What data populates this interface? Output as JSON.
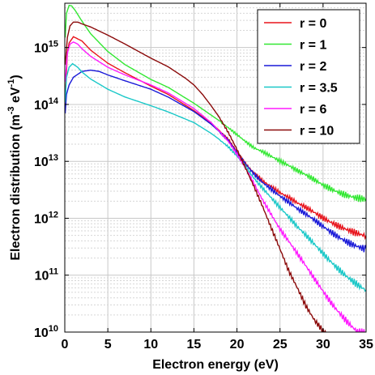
{
  "chart_data": {
    "type": "line",
    "xlabel": "Electron energy (eV)",
    "ylabel_main": "Electron distribution (m",
    "ylabel_exp1": "-3",
    "ylabel_mid": " eV",
    "ylabel_exp2": "-1",
    "ylabel_end": ")",
    "xlim": [
      0,
      35
    ],
    "ylim": [
      10000000000,
      6000000000000000
    ],
    "yscale": "log",
    "grid": true,
    "legend_position": "top-right",
    "x_ticks": [
      "0",
      "5",
      "10",
      "15",
      "20",
      "25",
      "30",
      "35"
    ],
    "y_ticks": [
      {
        "base": "10",
        "exp": "10",
        "value": 10000000000
      },
      {
        "base": "10",
        "exp": "11",
        "value": 100000000000
      },
      {
        "base": "10",
        "exp": "12",
        "value": 1000000000000
      },
      {
        "base": "10",
        "exp": "13",
        "value": 10000000000000
      },
      {
        "base": "10",
        "exp": "14",
        "value": 100000000000000
      },
      {
        "base": "10",
        "exp": "15",
        "value": 1000000000000000
      }
    ],
    "series": [
      {
        "name": "r = 0",
        "color": "#e8141c",
        "x": [
          0.05,
          0.3,
          0.5,
          1.0,
          2,
          3,
          5,
          7,
          10,
          12,
          15,
          17,
          19,
          20,
          21,
          22,
          23,
          25,
          27,
          30,
          33,
          35
        ],
        "y": [
          130000000000000.0,
          800000000000000.0,
          1200000000000000.0,
          1550000000000000.0,
          1300000000000000.0,
          900000000000000.0,
          530000000000000.0,
          360000000000000.0,
          210000000000000.0,
          150000000000000.0,
          78000000000000.0,
          47000000000000.0,
          25000000000000.0,
          15500000000000.0,
          9500000000000.0,
          6500000000000.0,
          4600000000000.0,
          2650000000000.0,
          1700000000000.0,
          1050000000000.0,
          700000000000.0,
          500000000000.0
        ]
      },
      {
        "name": "r = 1",
        "color": "#33e833",
        "x": [
          0.05,
          0.2,
          0.5,
          0.8,
          1.2,
          2,
          3,
          5,
          7,
          10,
          12,
          15,
          17,
          19,
          20,
          21,
          22,
          23,
          25,
          27,
          30,
          33,
          35
        ],
        "y": [
          1500000000000000.0,
          4000000000000000.0,
          5500000000000000.0,
          5400000000000000.0,
          4500000000000000.0,
          2900000000000000.0,
          1750000000000000.0,
          850000000000000.0,
          500000000000000.0,
          275000000000000.0,
          200000000000000.0,
          105000000000000.0,
          65000000000000.0,
          40000000000000.0,
          31000000000000.0,
          23500000000000.0,
          18000000000000.0,
          15000000000000.0,
          9500000000000.0,
          6300000000000.0,
          4000000000000.0,
          2800000000000.0,
          2200000000000.0
        ]
      },
      {
        "name": "r = 2",
        "color": "#1a1ad8",
        "x": [
          0.05,
          0.2,
          0.5,
          1,
          2,
          3,
          4,
          5,
          7,
          10,
          12,
          15,
          17,
          19,
          20,
          21,
          22,
          23,
          25,
          27,
          30,
          33,
          35
        ],
        "y": [
          70000000000000.0,
          150000000000000.0,
          220000000000000.0,
          300000000000000.0,
          380000000000000.0,
          400000000000000.0,
          380000000000000.0,
          330000000000000.0,
          260000000000000.0,
          185000000000000.0,
          135000000000000.0,
          75000000000000.0,
          45000000000000.0,
          24000000000000.0,
          15000000000000.0,
          9500000000000.0,
          6200000000000.0,
          4300000000000.0,
          2300000000000.0,
          1350000000000.0,
          750000000000.0,
          420000000000.0,
          290000000000.0
        ]
      },
      {
        "name": "r = 3.5",
        "color": "#1ac8c8",
        "x": [
          0.05,
          0.2,
          0.5,
          0.9,
          1.5,
          2,
          3,
          5,
          7,
          10,
          12,
          15,
          17,
          19,
          20,
          21,
          22,
          23,
          25,
          27,
          30,
          33,
          35
        ],
        "y": [
          110000000000000.0,
          300000000000000.0,
          450000000000000.0,
          520000000000000.0,
          450000000000000.0,
          370000000000000.0,
          280000000000000.0,
          185000000000000.0,
          135000000000000.0,
          95000000000000.0,
          74000000000000.0,
          48000000000000.0,
          31000000000000.0,
          18500000000000.0,
          13000000000000.0,
          8500000000000.0,
          5200000000000.0,
          3400000000000.0,
          1450000000000.0,
          650000000000.0,
          250000000000.0,
          100000000000.0,
          55000000000.0
        ]
      },
      {
        "name": "r = 6",
        "color": "#ff1aff",
        "x": [
          0.05,
          0.3,
          0.6,
          1.0,
          1.5,
          2,
          3,
          5,
          7,
          10,
          12,
          15,
          17,
          19,
          20,
          21,
          22,
          23,
          25,
          27,
          29,
          31,
          33,
          34,
          35
        ],
        "y": [
          250000000000000.0,
          800000000000000.0,
          1150000000000000.0,
          1250000000000000.0,
          1150000000000000.0,
          950000000000000.0,
          700000000000000.0,
          450000000000000.0,
          330000000000000.0,
          220000000000000.0,
          160000000000000.0,
          85000000000000.0,
          48000000000000.0,
          23000000000000.0,
          14000000000000.0,
          8000000000000.0,
          4200000000000.0,
          2100000000000.0,
          600000000000.0,
          220000000000.0,
          85000000000.0,
          35000000000.0,
          16000000000.0,
          11000000000.0,
          10000000000.0
        ]
      },
      {
        "name": "r = 10",
        "color": "#8b0a0a",
        "x": [
          0.05,
          0.3,
          0.6,
          1.0,
          1.5,
          2,
          3,
          5,
          7,
          10,
          12,
          14,
          15,
          16,
          17,
          18,
          19,
          20,
          21,
          22,
          23,
          24,
          25,
          26,
          27,
          28,
          29,
          30,
          30.5
        ],
        "y": [
          500000000000000.0,
          1500000000000000.0,
          2400000000000000.0,
          2800000000000000.0,
          2800000000000000.0,
          2600000000000000.0,
          2300000000000000.0,
          1650000000000000.0,
          1150000000000000.0,
          650000000000000.0,
          460000000000000.0,
          290000000000000.0,
          220000000000000.0,
          150000000000000.0,
          95000000000000.0,
          58000000000000.0,
          33000000000000.0,
          17000000000000.0,
          8000000000000.0,
          3700000000000.0,
          1600000000000.0,
          650000000000.0,
          270000000000.0,
          110000000000.0,
          55000000000.0,
          27000000000.0,
          16000000000.0,
          11000000000.0,
          10000000000.0
        ]
      }
    ]
  }
}
